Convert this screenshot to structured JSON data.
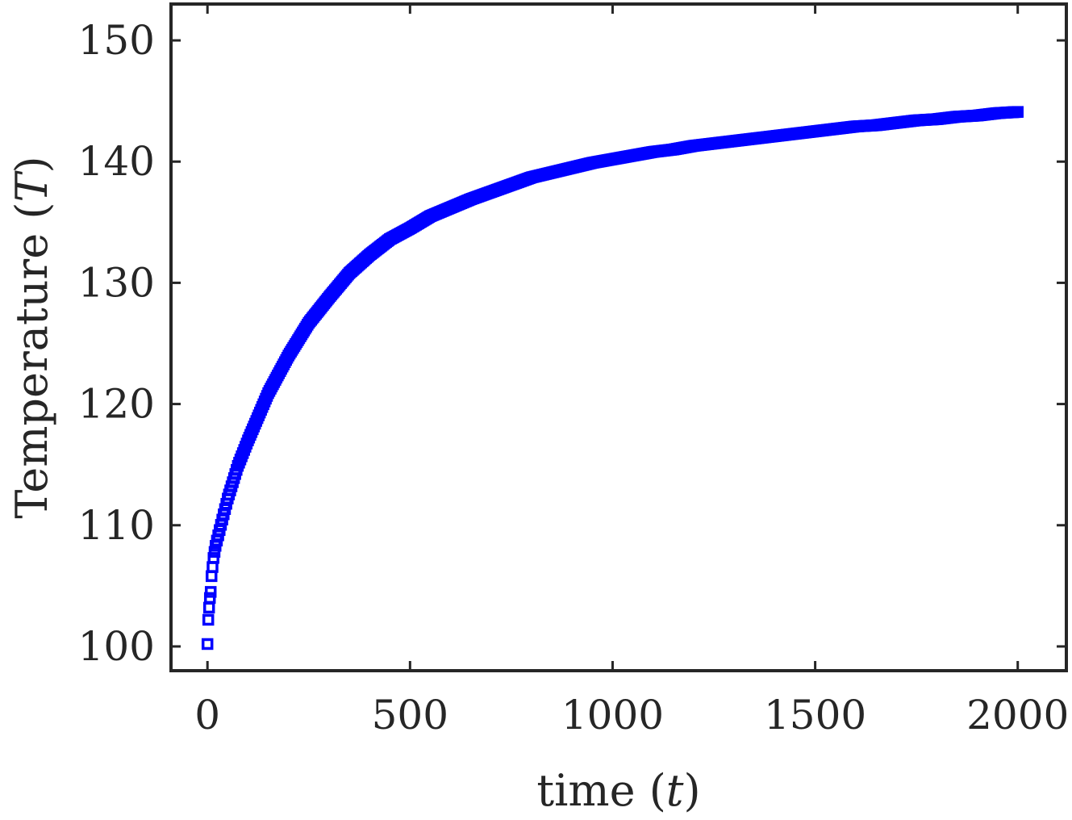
{
  "chart_data": {
    "type": "scatter",
    "title": "",
    "xlabel_text": "time",
    "xlabel_symbol": "t",
    "ylabel_text": "Temperature",
    "ylabel_symbol": "T",
    "xlim": [
      -90,
      2120
    ],
    "ylim": [
      98,
      153
    ],
    "xticks": [
      0,
      500,
      1000,
      1500,
      2000
    ],
    "xtick_labels": [
      "0",
      "500",
      "1000",
      "1500",
      "2000"
    ],
    "yticks": [
      100,
      110,
      120,
      130,
      140,
      150
    ],
    "ytick_labels": [
      "100",
      "110",
      "120",
      "130",
      "140",
      "150"
    ],
    "grid": false,
    "marker": "square-open",
    "marker_color": "#0000ff",
    "series": [
      {
        "x": [
          0,
          2,
          4,
          6,
          8,
          10,
          15,
          20,
          30,
          40,
          50,
          75,
          100,
          150,
          200,
          250,
          300,
          350,
          400,
          450,
          500,
          550,
          600,
          650,
          700,
          750,
          800,
          850,
          900,
          950,
          1000,
          1050,
          1100,
          1150,
          1200,
          1250,
          1300,
          1350,
          1400,
          1450,
          1500,
          1550,
          1600,
          1650,
          1700,
          1750,
          1800,
          1850,
          1900,
          1950,
          2000
        ],
        "y": [
          100.2,
          102.2,
          103.2,
          104.0,
          104.5,
          105.8,
          107.3,
          108.3,
          109.6,
          110.9,
          112.2,
          114.9,
          117.0,
          120.9,
          124.0,
          126.7,
          128.8,
          130.8,
          132.3,
          133.6,
          134.5,
          135.5,
          136.2,
          136.9,
          137.5,
          138.1,
          138.7,
          139.1,
          139.5,
          139.9,
          140.2,
          140.5,
          140.8,
          141.0,
          141.3,
          141.5,
          141.7,
          141.9,
          142.1,
          142.3,
          142.5,
          142.7,
          142.9,
          143.0,
          143.2,
          143.4,
          143.5,
          143.7,
          143.8,
          144.0,
          144.1
        ]
      }
    ]
  }
}
